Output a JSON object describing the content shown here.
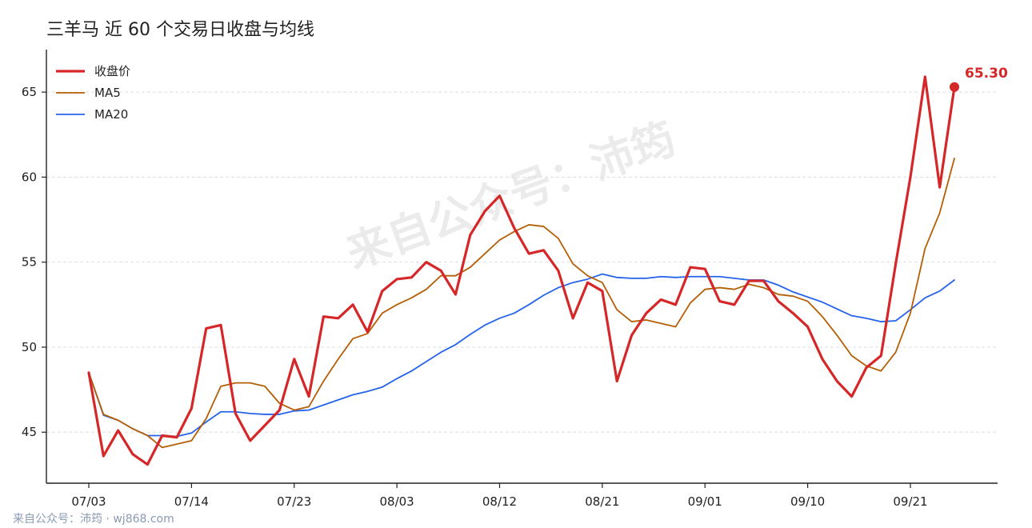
{
  "chart_data": {
    "type": "line",
    "title": "三羊马 近 60 个交易日收盘与均线",
    "xlabel": "",
    "ylabel": "",
    "ylim": [
      42.0,
      67.5
    ],
    "yticks": [
      45,
      50,
      55,
      60,
      65
    ],
    "xtick_labels": [
      "07/03",
      "07/14",
      "07/23",
      "08/03",
      "08/12",
      "08/21",
      "09/01",
      "09/10",
      "09/21"
    ],
    "xtick_index": [
      0,
      7,
      14,
      21,
      28,
      35,
      42,
      49,
      56
    ],
    "grid": "horizontal dashed",
    "legend_position": "top-left",
    "series": [
      {
        "name": "收盘价",
        "color": "#d62728",
        "values": [
          48.5,
          43.6,
          45.1,
          43.7,
          43.1,
          44.8,
          44.7,
          46.4,
          51.1,
          51.3,
          46.1,
          44.5,
          45.4,
          46.3,
          49.3,
          47.1,
          51.8,
          51.7,
          52.5,
          50.9,
          53.3,
          54.0,
          54.1,
          55.0,
          54.5,
          53.1,
          56.6,
          58.0,
          58.9,
          57.0,
          55.5,
          55.7,
          54.5,
          51.7,
          53.8,
          53.3,
          48.0,
          50.7,
          52.0,
          52.8,
          52.5,
          54.7,
          54.6,
          52.7,
          52.5,
          53.9,
          53.9,
          52.7,
          52.0,
          51.2,
          49.3,
          48.0,
          47.1,
          48.8,
          49.5,
          54.9,
          60.0,
          65.9,
          59.4,
          65.3
        ]
      },
      {
        "name": "MA5",
        "color": "#b45f06",
        "values": [
          48.5,
          46.05,
          45.7,
          45.2,
          44.8,
          44.1,
          44.3,
          44.5,
          45.8,
          47.7,
          47.9,
          47.9,
          47.7,
          46.7,
          46.3,
          46.5,
          48.0,
          49.3,
          50.5,
          50.8,
          52.0,
          52.5,
          52.9,
          53.4,
          54.2,
          54.2,
          54.7,
          55.5,
          56.3,
          56.8,
          57.2,
          57.1,
          56.4,
          54.9,
          54.2,
          53.8,
          52.2,
          51.5,
          51.6,
          51.4,
          51.2,
          52.6,
          53.4,
          53.5,
          53.4,
          53.7,
          53.5,
          53.1,
          53.0,
          52.7,
          51.8,
          50.7,
          49.5,
          48.9,
          48.6,
          49.7,
          52.0,
          55.8,
          57.9,
          61.1
        ]
      },
      {
        "name": "MA20",
        "color": "#2563eb",
        "values": [
          48.5,
          46.0,
          45.7,
          45.2,
          44.8,
          44.8,
          44.75,
          44.95,
          45.6,
          46.2,
          46.2,
          46.1,
          46.05,
          46.05,
          46.25,
          46.3,
          46.6,
          46.9,
          47.2,
          47.4,
          47.65,
          48.15,
          48.6,
          49.15,
          49.7,
          50.15,
          50.75,
          51.3,
          51.7,
          52.0,
          52.5,
          53.05,
          53.5,
          53.8,
          54.0,
          54.3,
          54.1,
          54.05,
          54.05,
          54.15,
          54.1,
          54.15,
          54.15,
          54.15,
          54.05,
          53.95,
          53.95,
          53.65,
          53.25,
          52.95,
          52.65,
          52.25,
          51.85,
          51.7,
          51.5,
          51.55,
          52.2,
          52.9,
          53.3,
          53.95
        ]
      }
    ],
    "last_value_label": "65.30"
  },
  "watermark": "来自公众号：沛筠",
  "footer": "来自公众号：沛筠 · wj868.com"
}
